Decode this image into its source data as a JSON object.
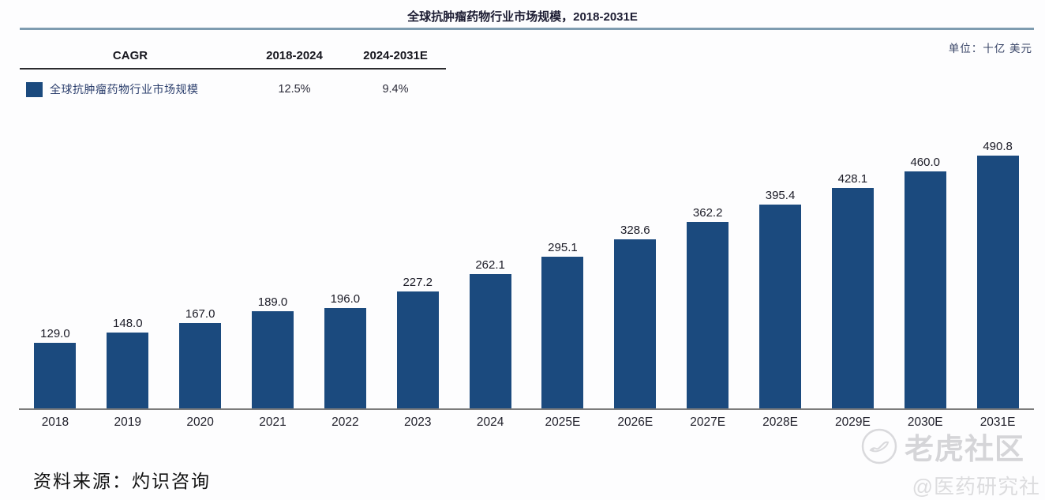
{
  "header": {
    "title": "全球抗肿瘤药物行业市场规模，2018-2031E",
    "unit_label": "单位：十亿 美元"
  },
  "cagr_table": {
    "headers": [
      "CAGR",
      "2018-2024",
      "2024-2031E"
    ],
    "row": {
      "legend_label": "全球抗肿瘤药物行业市场规模",
      "cagr_2018_2024": "12.5%",
      "cagr_2024_2031e": "9.4%"
    }
  },
  "chart_data": {
    "type": "bar",
    "title": "全球抗肿瘤药物行业市场规模，2018-2031E",
    "unit": "十亿 美元",
    "categories": [
      "2018",
      "2019",
      "2020",
      "2021",
      "2022",
      "2023",
      "2024",
      "2025E",
      "2026E",
      "2027E",
      "2028E",
      "2029E",
      "2030E",
      "2031E"
    ],
    "values": [
      129.0,
      148.0,
      167.0,
      189.0,
      196.0,
      227.2,
      262.1,
      295.1,
      328.6,
      362.2,
      395.4,
      428.1,
      460.0,
      490.8
    ],
    "value_labels": [
      "129.0",
      "148.0",
      "167.0",
      "189.0",
      "196.0",
      "227.2",
      "262.1",
      "295.1",
      "328.6",
      "362.2",
      "395.4",
      "428.1",
      "460.0",
      "490.8"
    ],
    "series_name": "全球抗肿瘤药物行业市场规模",
    "xlabel": "",
    "ylabel": "十亿 美元",
    "ylim": [
      0,
      500
    ],
    "grid": false,
    "legend_position": "top-left",
    "bar_color": "#1b4a7e"
  },
  "footer": {
    "source": "资料来源：灼识咨询"
  },
  "watermark": {
    "logo_icon": "tiger-circle-icon",
    "brand": "老虎社区",
    "handle": "@医药研究社"
  },
  "colors": {
    "bar": "#1b4a7e",
    "title_underline": "#7e9cb0",
    "table_line": "#2b2b2e",
    "axis_line": "#7c7c7c",
    "watermark_gray": "#d5d5d8"
  }
}
